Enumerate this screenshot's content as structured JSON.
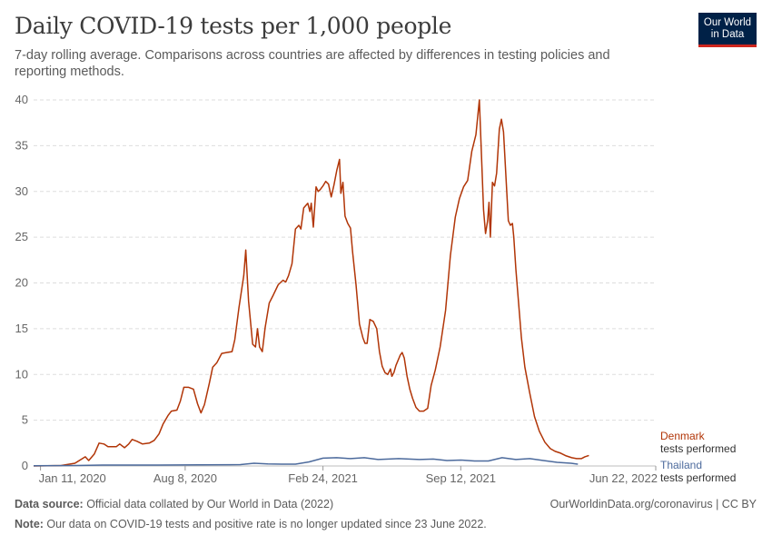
{
  "header": {
    "title": "Daily COVID-19 tests per 1,000 people",
    "subtitle": "7-day rolling average. Comparisons across countries are affected by differences in testing policies and reporting methods."
  },
  "logo": {
    "line1": "Our World",
    "line2": "in Data",
    "bg_color": "#002147",
    "accent_color": "#ce261e"
  },
  "footer": {
    "source_label": "Data source:",
    "source_text": " Official data collated by Our World in Data (2022)",
    "credit": "OurWorldinData.org/coronavirus | CC BY",
    "note_label": "Note:",
    "note_text": " Our data on COVID-19 tests and positive rate is no longer updated since 23 June 2022."
  },
  "chart_data": {
    "type": "line",
    "title": "Daily COVID-19 tests per 1,000 people",
    "ylabel": "",
    "xlabel": "",
    "ylim": [
      0,
      40
    ],
    "yticks": [
      0,
      5,
      10,
      15,
      20,
      25,
      30,
      35,
      40
    ],
    "xlim": [
      "2020-01-01",
      "2022-06-22"
    ],
    "x_unit": "days since 2020-01-01",
    "xlim_days": [
      0,
      903
    ],
    "xticks": [
      {
        "label": "Jan 11, 2020",
        "day": 10
      },
      {
        "label": "Aug 8, 2020",
        "day": 220
      },
      {
        "label": "Feb 24, 2021",
        "day": 420
      },
      {
        "label": "Sep 12, 2021",
        "day": 620
      },
      {
        "label": "Jun 22, 2022",
        "day": 903
      }
    ],
    "grid": true,
    "series": [
      {
        "name": "Denmark",
        "sublabel": "tests performed",
        "color": "#b13507",
        "points": [
          [
            0,
            0
          ],
          [
            40,
            0.05
          ],
          [
            60,
            0.3
          ],
          [
            75,
            1.0
          ],
          [
            80,
            0.6
          ],
          [
            88,
            1.3
          ],
          [
            95,
            2.5
          ],
          [
            102,
            2.4
          ],
          [
            108,
            2.1
          ],
          [
            120,
            2.1
          ],
          [
            125,
            2.4
          ],
          [
            132,
            2.0
          ],
          [
            138,
            2.4
          ],
          [
            143,
            2.9
          ],
          [
            150,
            2.7
          ],
          [
            158,
            2.4
          ],
          [
            168,
            2.5
          ],
          [
            175,
            2.8
          ],
          [
            182,
            3.5
          ],
          [
            188,
            4.6
          ],
          [
            195,
            5.5
          ],
          [
            200,
            6.0
          ],
          [
            208,
            6.1
          ],
          [
            213,
            7.1
          ],
          [
            218,
            8.6
          ],
          [
            225,
            8.6
          ],
          [
            232,
            8.4
          ],
          [
            238,
            6.8
          ],
          [
            243,
            5.8
          ],
          [
            248,
            6.7
          ],
          [
            255,
            9.0
          ],
          [
            260,
            10.8
          ],
          [
            266,
            11.3
          ],
          [
            273,
            12.3
          ],
          [
            280,
            12.4
          ],
          [
            288,
            12.5
          ],
          [
            292,
            13.8
          ],
          [
            298,
            17.3
          ],
          [
            305,
            20.8
          ],
          [
            308,
            23.6
          ],
          [
            312,
            18.0
          ],
          [
            318,
            13.3
          ],
          [
            322,
            13.0
          ],
          [
            325,
            15.0
          ],
          [
            328,
            13.0
          ],
          [
            332,
            12.5
          ],
          [
            336,
            15.1
          ],
          [
            342,
            17.8
          ],
          [
            348,
            18.7
          ],
          [
            355,
            19.8
          ],
          [
            362,
            20.3
          ],
          [
            366,
            20.1
          ],
          [
            370,
            20.8
          ],
          [
            375,
            22.1
          ],
          [
            380,
            25.9
          ],
          [
            385,
            26.3
          ],
          [
            388,
            25.9
          ],
          [
            392,
            28.2
          ],
          [
            398,
            28.7
          ],
          [
            401,
            27.8
          ],
          [
            403,
            28.7
          ],
          [
            406,
            26.1
          ],
          [
            410,
            30.5
          ],
          [
            413,
            30.0
          ],
          [
            416,
            30.2
          ],
          [
            420,
            30.6
          ],
          [
            424,
            31.1
          ],
          [
            428,
            30.8
          ],
          [
            432,
            29.4
          ],
          [
            436,
            30.7
          ],
          [
            440,
            32.3
          ],
          [
            444,
            33.5
          ],
          [
            446,
            29.8
          ],
          [
            449,
            31.0
          ],
          [
            452,
            27.3
          ],
          [
            456,
            26.5
          ],
          [
            460,
            26.0
          ],
          [
            463,
            23.4
          ],
          [
            468,
            19.8
          ],
          [
            473,
            15.5
          ],
          [
            478,
            14.0
          ],
          [
            481,
            13.4
          ],
          [
            484,
            13.4
          ],
          [
            488,
            16.0
          ],
          [
            493,
            15.8
          ],
          [
            498,
            15.0
          ],
          [
            502,
            12.5
          ],
          [
            506,
            10.9
          ],
          [
            510,
            10.2
          ],
          [
            514,
            10.0
          ],
          [
            518,
            10.6
          ],
          [
            520,
            9.8
          ],
          [
            523,
            10.2
          ],
          [
            526,
            11.0
          ],
          [
            532,
            12.1
          ],
          [
            535,
            12.4
          ],
          [
            538,
            11.8
          ],
          [
            542,
            9.8
          ],
          [
            546,
            8.4
          ],
          [
            550,
            7.4
          ],
          [
            555,
            6.4
          ],
          [
            560,
            6.0
          ],
          [
            566,
            6.0
          ],
          [
            572,
            6.3
          ],
          [
            577,
            8.8
          ],
          [
            583,
            10.5
          ],
          [
            590,
            13.0
          ],
          [
            598,
            17.0
          ],
          [
            605,
            23.0
          ],
          [
            612,
            27.2
          ],
          [
            618,
            29.2
          ],
          [
            624,
            30.5
          ],
          [
            630,
            31.2
          ],
          [
            636,
            34.4
          ],
          [
            642,
            36.2
          ],
          [
            647,
            40.0
          ],
          [
            650,
            34.0
          ],
          [
            653,
            28.0
          ],
          [
            656,
            25.4
          ],
          [
            659,
            26.8
          ],
          [
            661,
            28.8
          ],
          [
            663,
            25.0
          ],
          [
            666,
            31.0
          ],
          [
            669,
            30.6
          ],
          [
            672,
            32.0
          ],
          [
            676,
            36.8
          ],
          [
            679,
            37.9
          ],
          [
            682,
            36.5
          ],
          [
            686,
            31.0
          ],
          [
            689,
            26.8
          ],
          [
            692,
            26.3
          ],
          [
            695,
            26.5
          ],
          [
            697,
            25.0
          ],
          [
            700,
            21.5
          ],
          [
            704,
            17.8
          ],
          [
            708,
            14.0
          ],
          [
            713,
            10.8
          ],
          [
            720,
            8.0
          ],
          [
            727,
            5.4
          ],
          [
            734,
            3.8
          ],
          [
            742,
            2.6
          ],
          [
            750,
            1.9
          ],
          [
            757,
            1.6
          ],
          [
            765,
            1.4
          ],
          [
            773,
            1.1
          ],
          [
            781,
            0.9
          ],
          [
            788,
            0.8
          ],
          [
            795,
            0.8
          ],
          [
            800,
            1.0
          ],
          [
            806,
            1.15
          ]
        ]
      },
      {
        "name": "Thailand",
        "sublabel": "tests performed",
        "color": "#4c6a9c",
        "points": [
          [
            0,
            0.02
          ],
          [
            60,
            0.05
          ],
          [
            100,
            0.1
          ],
          [
            140,
            0.1
          ],
          [
            180,
            0.1
          ],
          [
            240,
            0.12
          ],
          [
            300,
            0.15
          ],
          [
            320,
            0.3
          ],
          [
            340,
            0.22
          ],
          [
            360,
            0.2
          ],
          [
            380,
            0.2
          ],
          [
            400,
            0.45
          ],
          [
            420,
            0.85
          ],
          [
            440,
            0.9
          ],
          [
            460,
            0.8
          ],
          [
            480,
            0.9
          ],
          [
            500,
            0.7
          ],
          [
            530,
            0.8
          ],
          [
            560,
            0.7
          ],
          [
            580,
            0.75
          ],
          [
            600,
            0.6
          ],
          [
            620,
            0.65
          ],
          [
            640,
            0.55
          ],
          [
            660,
            0.55
          ],
          [
            680,
            0.9
          ],
          [
            700,
            0.7
          ],
          [
            720,
            0.8
          ],
          [
            740,
            0.6
          ],
          [
            760,
            0.4
          ],
          [
            780,
            0.3
          ],
          [
            790,
            0.2
          ]
        ]
      }
    ]
  }
}
